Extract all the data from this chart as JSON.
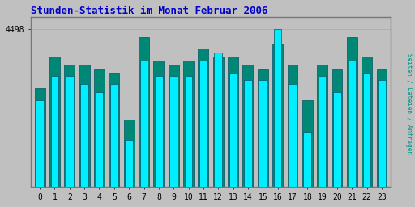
{
  "title": "Stunden-Statistik im Monat Februar 2006",
  "title_color": "#0000cc",
  "background_color": "#c0c0c0",
  "plot_bg_color": "#c0c0c0",
  "bar_color_cyan": "#00eeff",
  "bar_color_teal": "#008877",
  "bar_edge_color": "#005566",
  "ylabel_right": "Seiten / Dateien / Anfragen",
  "ylabel_right_color": "#009988",
  "ytick_label": "4498",
  "hours": [
    0,
    1,
    2,
    3,
    4,
    5,
    6,
    7,
    8,
    9,
    10,
    11,
    12,
    13,
    14,
    15,
    16,
    17,
    18,
    19,
    20,
    21,
    22,
    23
  ],
  "cyan_vals": [
    82,
    88,
    88,
    86,
    84,
    86,
    72,
    92,
    88,
    88,
    88,
    92,
    94,
    89,
    87,
    87,
    100,
    86,
    74,
    88,
    84,
    92,
    89,
    87
  ],
  "teal_vals": [
    85,
    93,
    91,
    91,
    90,
    89,
    77,
    98,
    92,
    91,
    92,
    95,
    93,
    93,
    91,
    90,
    96,
    91,
    82,
    91,
    90,
    98,
    93,
    90
  ],
  "ylim_min": 60,
  "ylim_max": 103,
  "ytick_val": 100,
  "bar_width": 0.7,
  "group_width": 1.0
}
